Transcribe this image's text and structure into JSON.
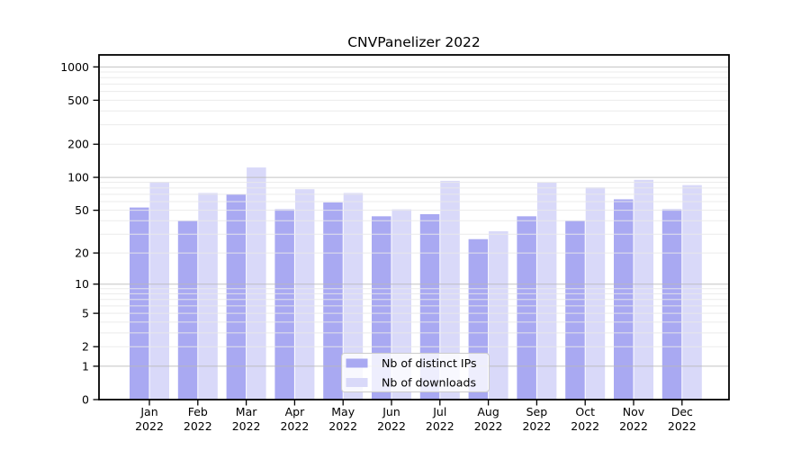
{
  "chart_data": {
    "type": "bar",
    "title": "CNVPanelizer 2022",
    "categories": [
      "Jan",
      "Feb",
      "Mar",
      "Apr",
      "May",
      "Jun",
      "Jul",
      "Aug",
      "Sep",
      "Oct",
      "Nov",
      "Dec"
    ],
    "x_second_line": "2022",
    "series": [
      {
        "name": "Nb of distinct IPs",
        "color": "#a9a9f2",
        "values": [
          53,
          40,
          70,
          51,
          59,
          44,
          46,
          27,
          44,
          40,
          63,
          51
        ]
      },
      {
        "name": "Nb of downloads",
        "color": "#d9d9f9",
        "values": [
          91,
          72,
          123,
          78,
          72,
          51,
          93,
          32,
          90,
          81,
          95,
          85
        ]
      }
    ],
    "yscale": "log1p",
    "yticks": [
      0,
      1,
      2,
      5,
      10,
      20,
      50,
      100,
      200,
      500,
      1000
    ],
    "ylim": [
      0,
      1280
    ],
    "grid": "horizontal",
    "legend_position": "inside-bottom-center",
    "colors": {
      "major_gridline": "#b9b9b9",
      "minor_gridline": "#e9e9e9",
      "axis": "#000000",
      "legend_border": "#cccccc",
      "legend_background": "#ffffff"
    }
  }
}
